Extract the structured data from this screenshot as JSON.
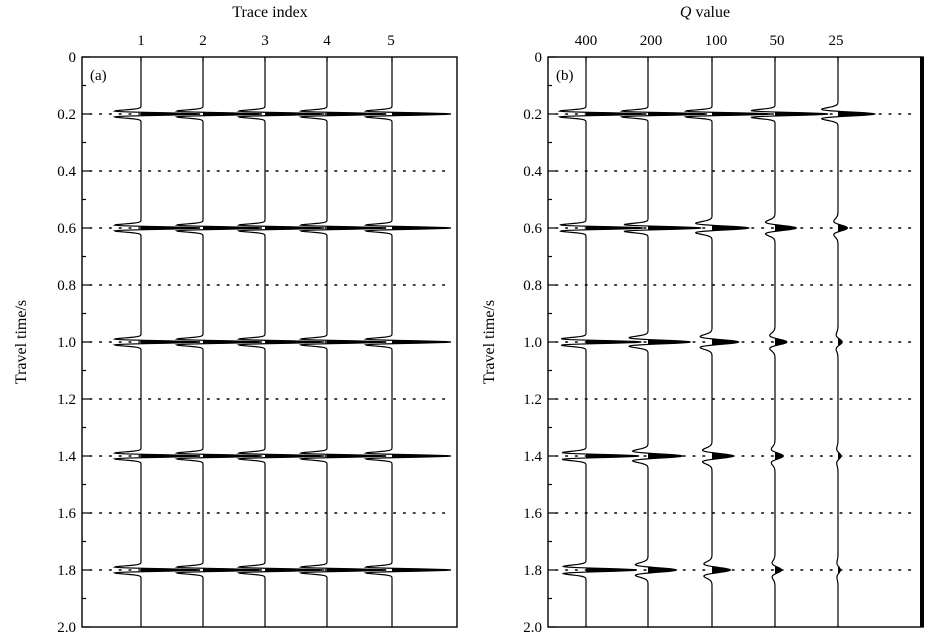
{
  "chart_data": [
    {
      "type": "line",
      "panel_label": "(a)",
      "top_title": "Trace index",
      "ylabel": "Travel time/s",
      "ylim": [
        0,
        2.0
      ],
      "y_ticks": [
        "0",
        "0.2",
        "0.4",
        "0.6",
        "0.8",
        "1.0",
        "1.2",
        "1.4",
        "1.6",
        "1.8",
        "2.0"
      ],
      "x_tick_labels": [
        "1",
        "2",
        "3",
        "4",
        "5"
      ],
      "event_times": [
        0.2,
        0.6,
        1.0,
        1.4,
        1.8
      ],
      "grid": "dotted horizontal at event times and 0.4/0.8/1.2/1.6",
      "series": [
        {
          "name": "1",
          "relative_amplitudes": [
            1.0,
            1.0,
            1.0,
            1.0,
            1.0
          ]
        },
        {
          "name": "2",
          "relative_amplitudes": [
            1.0,
            1.0,
            1.0,
            1.0,
            1.0
          ]
        },
        {
          "name": "3",
          "relative_amplitudes": [
            1.0,
            1.0,
            1.0,
            1.0,
            1.0
          ]
        },
        {
          "name": "4",
          "relative_amplitudes": [
            1.0,
            1.0,
            1.0,
            1.0,
            1.0
          ]
        },
        {
          "name": "5",
          "relative_amplitudes": [
            1.0,
            1.0,
            1.0,
            1.0,
            1.0
          ]
        }
      ]
    },
    {
      "type": "line",
      "panel_label": "(b)",
      "top_title_italic": "Q",
      "top_title_rest": " value",
      "ylabel": "Travel time/s",
      "ylim": [
        0,
        2.0
      ],
      "y_ticks": [
        "0",
        "0.2",
        "0.4",
        "0.6",
        "0.8",
        "1.0",
        "1.2",
        "1.4",
        "1.6",
        "1.8",
        "2.0"
      ],
      "x_tick_labels": [
        "400",
        "200",
        "100",
        "50",
        "25"
      ],
      "event_times": [
        0.2,
        0.6,
        1.0,
        1.4,
        1.8
      ],
      "grid": "dotted horizontal at event times and 0.4/0.8/1.2/1.6",
      "series": [
        {
          "name": "400",
          "relative_amplitudes": [
            1.0,
            0.97,
            0.94,
            0.9,
            0.86
          ]
        },
        {
          "name": "200",
          "relative_amplitudes": [
            1.0,
            0.9,
            0.72,
            0.58,
            0.48
          ]
        },
        {
          "name": "100",
          "relative_amplitudes": [
            1.0,
            0.62,
            0.45,
            0.36,
            0.31
          ]
        },
        {
          "name": "50",
          "relative_amplitudes": [
            0.9,
            0.36,
            0.2,
            0.14,
            0.11
          ]
        },
        {
          "name": "25",
          "relative_amplitudes": [
            0.62,
            0.16,
            0.07,
            0.05,
            0.04
          ]
        }
      ]
    }
  ]
}
